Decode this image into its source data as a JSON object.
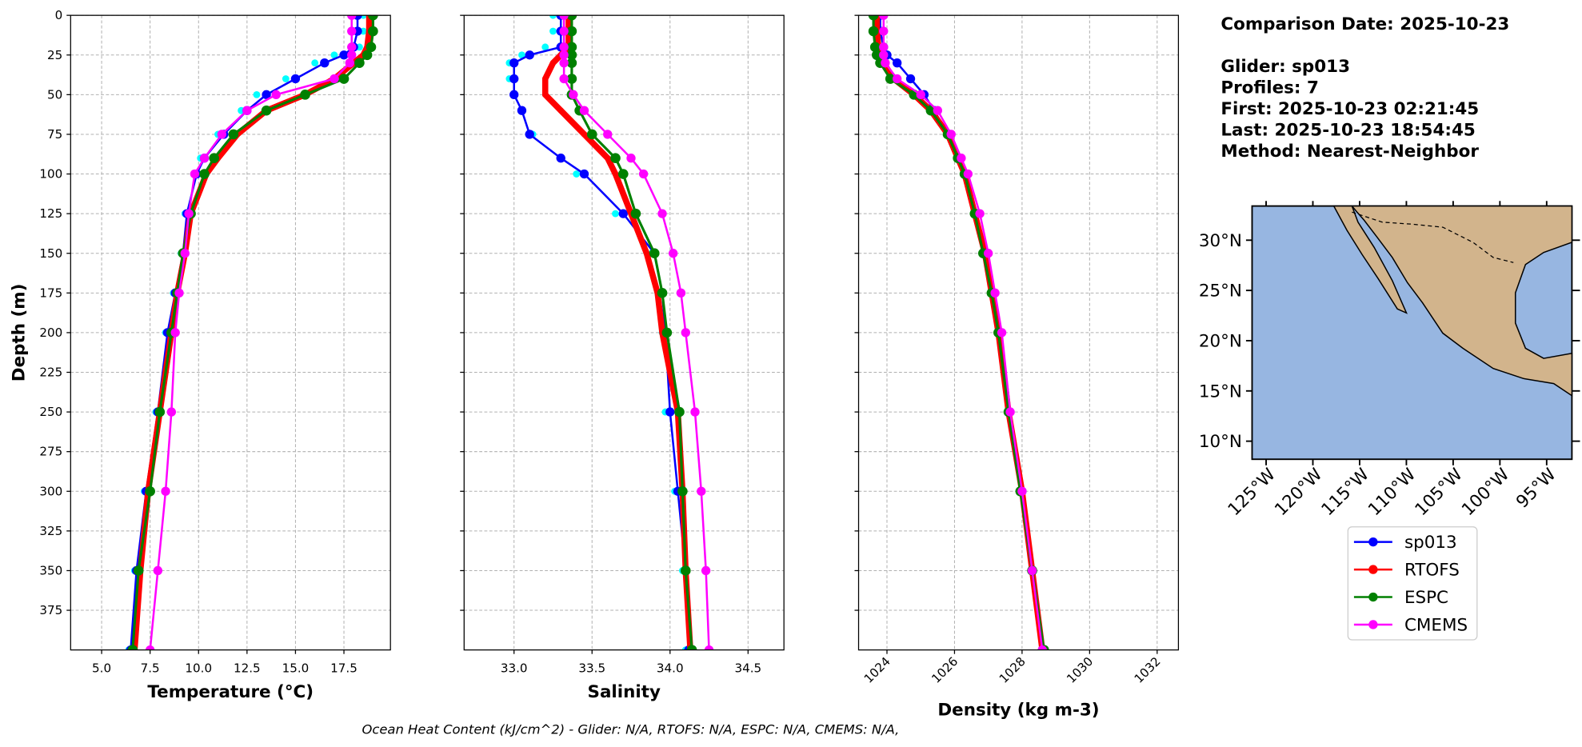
{
  "info": [
    "Comparison Date: 2025-10-23",
    "Glider: sp013",
    "Profiles: 7",
    "First: 2025-10-23 02:21:45",
    "Last: 2025-10-23 18:54:45",
    "Method: Nearest-Neighbor"
  ],
  "footer": "Ocean Heat Content (kJ/cm^2) - Glider: N/A,  RTOFS: N/A,  ESPC: N/A,  CMEMS: N/A,",
  "chart_data": [
    {
      "type": "line",
      "xlabel": "Temperature (°C)",
      "ylabel": "Depth (m)",
      "grid": true,
      "y_inverted": true,
      "xlim": [
        3.4,
        19.9
      ],
      "xticks": [
        {
          "value": 5,
          "label": "5.0"
        },
        7.5,
        {
          "value": 10,
          "label": "10.0"
        },
        12.5,
        {
          "value": 15,
          "label": "15.0"
        },
        17.5
      ],
      "ylim": [
        0,
        400
      ],
      "yticks": [
        0,
        25,
        50,
        75,
        100,
        125,
        150,
        175,
        200,
        225,
        250,
        275,
        300,
        325,
        350,
        375
      ],
      "y": [
        0,
        10,
        20,
        25,
        30,
        40,
        50,
        60,
        75,
        90,
        100,
        125,
        150,
        175,
        200,
        250,
        300,
        350,
        400
      ],
      "series": [
        {
          "color": "#00ffff",
          "linewidth": 0,
          "markersize": 3.5,
          "values": [
            18.5,
            18.5,
            18.3,
            17.0,
            16.0,
            14.5,
            13.0,
            12.2,
            11.0,
            10.1,
            9.8,
            9.3,
            9.1,
            8.7,
            8.3,
            7.8,
            7.2,
            6.7,
            6.4
          ]
        },
        {
          "name": "sp013",
          "color": "#0000ff",
          "linewidth": 2,
          "markersize": 4.5,
          "values": [
            18.2,
            18.2,
            18.0,
            17.5,
            16.5,
            15.0,
            13.5,
            12.5,
            11.3,
            10.3,
            9.9,
            9.4,
            9.2,
            8.8,
            8.4,
            7.9,
            7.3,
            6.8,
            6.5
          ]
        },
        {
          "name": "RTOFS",
          "color": "#ff0000",
          "linewidth": 6,
          "markersize": 3,
          "values": [
            18.8,
            18.8,
            18.7,
            18.5,
            18.0,
            17.0,
            15.5,
            13.5,
            12.0,
            11.0,
            10.4,
            9.6,
            9.3,
            8.9,
            8.6,
            8.0,
            7.4,
            7.0,
            6.7
          ]
        },
        {
          "name": "ESPC",
          "color": "#008000",
          "linewidth": 2.5,
          "markersize": 5,
          "values": [
            19.0,
            19.0,
            18.9,
            18.7,
            18.3,
            17.5,
            15.5,
            13.5,
            11.8,
            10.8,
            10.3,
            9.6,
            9.2,
            8.9,
            8.6,
            8.0,
            7.5,
            6.9,
            6.6
          ]
        },
        {
          "name": "CMEMS",
          "color": "#ff00ff",
          "linewidth": 2,
          "markersize": 4.5,
          "values": [
            17.9,
            17.9,
            17.9,
            17.9,
            17.8,
            17.0,
            14.0,
            12.5,
            11.2,
            10.3,
            9.8,
            9.5,
            9.3,
            9.0,
            8.8,
            8.6,
            8.3,
            7.9,
            7.5
          ]
        }
      ]
    },
    {
      "type": "line",
      "xlabel": "Salinity",
      "grid": true,
      "y_inverted": true,
      "xlim": [
        32.68,
        34.73
      ],
      "xticks": [
        {
          "value": 33,
          "label": "33.0"
        },
        33.5,
        {
          "value": 34,
          "label": "34.0"
        },
        34.5
      ],
      "ylim": [
        0,
        400
      ],
      "yticks": [
        0,
        25,
        50,
        75,
        100,
        125,
        150,
        175,
        200,
        225,
        250,
        275,
        300,
        325,
        350,
        375
      ],
      "y": [
        0,
        10,
        20,
        25,
        30,
        40,
        50,
        60,
        75,
        90,
        100,
        125,
        150,
        175,
        200,
        250,
        300,
        350,
        400
      ],
      "series": [
        {
          "color": "#00ffff",
          "linewidth": 0,
          "markersize": 3.5,
          "values": [
            33.25,
            33.25,
            33.2,
            33.05,
            32.97,
            32.97,
            33.0,
            33.05,
            33.12,
            33.3,
            33.4,
            33.65,
            33.88,
            33.93,
            33.95,
            33.97,
            34.03,
            34.08,
            34.1
          ]
        },
        {
          "color": "#0000ff",
          "linewidth": 2,
          "markersize": 4.5,
          "values": [
            33.3,
            33.3,
            33.3,
            33.1,
            33.0,
            33.0,
            33.0,
            33.05,
            33.1,
            33.3,
            33.45,
            33.7,
            33.9,
            33.95,
            33.97,
            34.0,
            34.05,
            34.1,
            34.12
          ]
        },
        {
          "color": "#ff0000",
          "linewidth": 6,
          "markersize": 3,
          "values": [
            33.35,
            33.35,
            33.35,
            33.3,
            33.25,
            33.2,
            33.2,
            33.3,
            33.45,
            33.6,
            33.65,
            33.75,
            33.85,
            33.92,
            33.95,
            34.05,
            34.08,
            34.1,
            34.13
          ]
        },
        {
          "color": "#008000",
          "linewidth": 2.5,
          "markersize": 5,
          "values": [
            33.37,
            33.37,
            33.37,
            33.37,
            33.37,
            33.37,
            33.37,
            33.42,
            33.5,
            33.65,
            33.7,
            33.78,
            33.9,
            33.95,
            33.98,
            34.06,
            34.08,
            34.1,
            34.14
          ]
        },
        {
          "color": "#ff00ff",
          "linewidth": 2,
          "markersize": 4.5,
          "values": [
            33.32,
            33.32,
            33.32,
            33.32,
            33.32,
            33.32,
            33.38,
            33.45,
            33.6,
            33.75,
            33.83,
            33.95,
            34.02,
            34.07,
            34.1,
            34.16,
            34.2,
            34.23,
            34.25
          ]
        }
      ]
    },
    {
      "type": "line",
      "xlabel": "Density (kg m-3)",
      "grid": true,
      "y_inverted": true,
      "xtick_rotation": -45,
      "xlim": [
        1023.16,
        1032.63
      ],
      "xticks": [
        1024,
        1026,
        1028,
        1030,
        1032
      ],
      "ylim": [
        0,
        400
      ],
      "yticks": [
        0,
        25,
        50,
        75,
        100,
        125,
        150,
        175,
        200,
        225,
        250,
        275,
        300,
        325,
        350,
        375
      ],
      "y": [
        0,
        10,
        20,
        25,
        30,
        40,
        50,
        60,
        75,
        90,
        100,
        125,
        150,
        175,
        200,
        250,
        300,
        350,
        400
      ],
      "series": [
        {
          "color": "#0000ff",
          "linewidth": 2,
          "markersize": 4.5,
          "values": [
            1023.8,
            1023.8,
            1023.9,
            1024.0,
            1024.3,
            1024.7,
            1025.1,
            1025.4,
            1025.8,
            1026.1,
            1026.3,
            1026.6,
            1026.9,
            1027.1,
            1027.3,
            1027.6,
            1028.0,
            1028.3,
            1028.6
          ]
        },
        {
          "color": "#ff0000",
          "linewidth": 6,
          "markersize": 3,
          "values": [
            1023.7,
            1023.7,
            1023.75,
            1023.8,
            1023.9,
            1024.2,
            1024.8,
            1025.3,
            1025.8,
            1026.1,
            1026.3,
            1026.6,
            1026.9,
            1027.1,
            1027.3,
            1027.6,
            1028.0,
            1028.3,
            1028.6
          ]
        },
        {
          "color": "#008000",
          "linewidth": 2.5,
          "markersize": 5,
          "values": [
            1023.6,
            1023.6,
            1023.65,
            1023.7,
            1023.8,
            1024.1,
            1024.8,
            1025.3,
            1025.8,
            1026.1,
            1026.3,
            1026.6,
            1026.85,
            1027.1,
            1027.3,
            1027.6,
            1027.95,
            1028.3,
            1028.65
          ]
        },
        {
          "color": "#ff00ff",
          "linewidth": 2,
          "markersize": 4.5,
          "values": [
            1023.9,
            1023.9,
            1023.9,
            1023.9,
            1023.95,
            1024.3,
            1025.0,
            1025.5,
            1025.9,
            1026.2,
            1026.4,
            1026.75,
            1027.0,
            1027.2,
            1027.4,
            1027.65,
            1028.0,
            1028.3,
            1028.6
          ]
        }
      ]
    },
    {
      "type": "map",
      "xlim": [
        -126.5,
        -92.3
      ],
      "ylim": [
        8.2,
        33.4
      ],
      "xticks": [
        {
          "value": -125,
          "label": "125°W"
        },
        {
          "value": -120,
          "label": "120°W"
        },
        {
          "value": -115,
          "label": "115°W"
        },
        {
          "value": -110,
          "label": "110°W"
        },
        {
          "value": -105,
          "label": "105°W"
        },
        {
          "value": -100,
          "label": "100°W"
        },
        {
          "value": -95,
          "label": "95°W"
        }
      ],
      "yticks": [
        {
          "value": 10,
          "label": "10°N"
        },
        {
          "value": 15,
          "label": "15°N"
        },
        {
          "value": 20,
          "label": "20°N"
        },
        {
          "value": 25,
          "label": "25°N"
        },
        {
          "value": 30,
          "label": "30°N"
        }
      ]
    }
  ]
}
